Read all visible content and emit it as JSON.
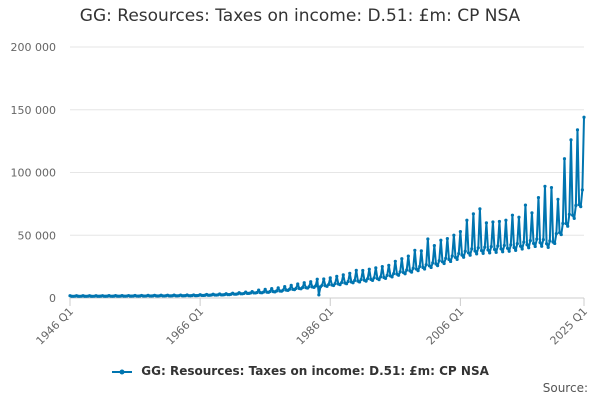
{
  "chart_data": {
    "type": "line",
    "title": "GG: Resources: Taxes on income: D.51: £m: CP NSA",
    "xlabel": "",
    "ylabel": "",
    "ylim": [
      0,
      200000
    ],
    "y_ticks": [
      0,
      50000,
      100000,
      150000,
      200000
    ],
    "y_tick_labels": [
      "0",
      "50 000",
      "100 000",
      "150 000",
      "200 000"
    ],
    "x_tick_labels": [
      "1946 Q1",
      "1966 Q1",
      "1986 Q1",
      "2006 Q1",
      "2025 Q1"
    ],
    "x_range": [
      "1946 Q1",
      "2025 Q1"
    ],
    "grid": true,
    "legend_position": "bottom",
    "series": [
      {
        "name": "GG: Resources: Taxes on income: D.51: £m: CP NSA",
        "color": "#0075b0",
        "frequency": "quarterly",
        "start": "1946 Q1",
        "end": "2025 Q1",
        "anchors": [
          [
            "1946 Q1",
            1500
          ],
          [
            "1950 Q1",
            1500
          ],
          [
            "1955 Q1",
            1600
          ],
          [
            "1960 Q1",
            1800
          ],
          [
            "1965 Q1",
            2000
          ],
          [
            "1970 Q1",
            2800
          ],
          [
            "1974 Q1",
            4200
          ],
          [
            "1978 Q1",
            6000
          ],
          [
            "1982 Q1",
            9000
          ],
          [
            "1986 Q1",
            11500
          ],
          [
            "1990 Q1",
            15000
          ],
          [
            "1994 Q1",
            18000
          ],
          [
            "1998 Q1",
            24000
          ],
          [
            "2002 Q1",
            30000
          ],
          [
            "2006 Q1",
            38000
          ],
          [
            "2008 Q1",
            42000
          ],
          [
            "2010 Q1",
            43000
          ],
          [
            "2014 Q1",
            45000
          ],
          [
            "2018 Q1",
            50000
          ],
          [
            "2020 Q1",
            48000
          ],
          [
            "2022 Q1",
            65000
          ],
          [
            "2024 Q1",
            80000
          ],
          [
            "2025 Q1",
            95000
          ]
        ],
        "peak_values": [
          [
            "1984 Q1",
            15000
          ],
          [
            "1990 Q1",
            22000
          ],
          [
            "1995 Q1",
            26000
          ],
          [
            "1999 Q1",
            38000
          ],
          [
            "2001 Q1",
            47000
          ],
          [
            "2003 Q1",
            46000
          ],
          [
            "2005 Q1",
            50000
          ],
          [
            "2007 Q1",
            62000
          ],
          [
            "2008 Q1",
            67000
          ],
          [
            "2009 Q1",
            71000
          ],
          [
            "2012 Q1",
            61000
          ],
          [
            "2014 Q1",
            66000
          ],
          [
            "2016 Q1",
            74000
          ],
          [
            "2018 Q1",
            80000
          ],
          [
            "2019 Q1",
            89000
          ],
          [
            "2020 Q1",
            88000
          ],
          [
            "2022 Q1",
            111000
          ],
          [
            "2023 Q1",
            126000
          ],
          [
            "2024 Q1",
            134000
          ],
          [
            "2025 Q1",
            144000
          ]
        ]
      }
    ]
  },
  "legend": {
    "label": "GG: Resources: Taxes on income: D.51: £m: CP NSA"
  },
  "footer": {
    "source_label": "Source:"
  }
}
